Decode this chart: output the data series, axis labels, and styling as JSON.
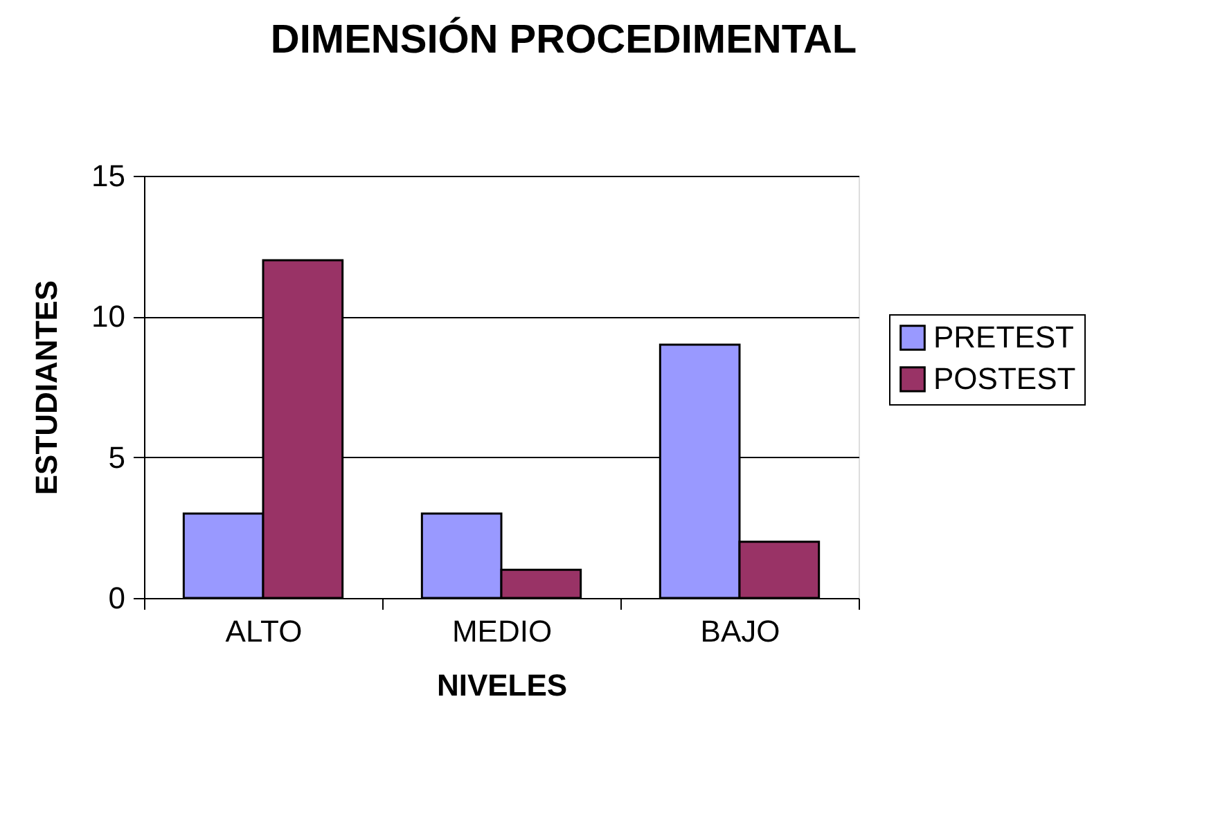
{
  "chart_data": {
    "type": "bar",
    "title": "DIMENSIÓN PROCEDIMENTAL",
    "xlabel": "NIVELES",
    "ylabel": "ESTUDIANTES",
    "categories": [
      "ALTO",
      "MEDIO",
      "BAJO"
    ],
    "series": [
      {
        "name": "PRETEST",
        "color": "#9999ff",
        "values": [
          3,
          3,
          9
        ]
      },
      {
        "name": "POSTEST",
        "color": "#993366",
        "values": [
          12,
          1,
          2
        ]
      }
    ],
    "ylim": [
      0,
      15
    ],
    "yticks": [
      0,
      5,
      10,
      15
    ],
    "grid": "y",
    "legend": "right"
  }
}
